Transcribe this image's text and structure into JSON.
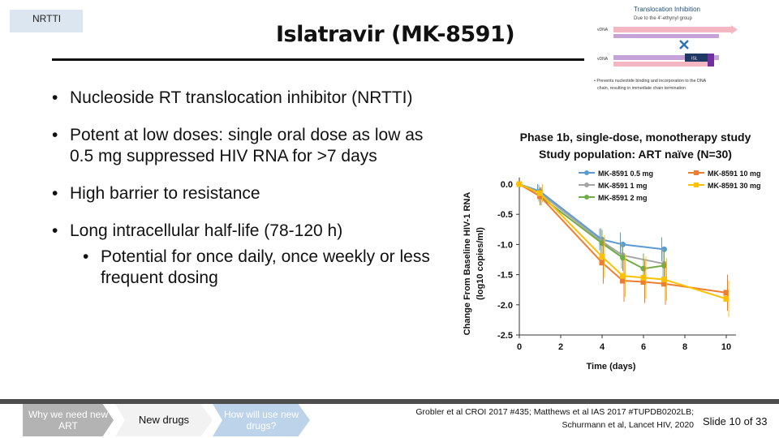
{
  "header": {
    "tag": "NRTTI",
    "title": "Islatravir (MK-8591)"
  },
  "bullets": [
    "Nucleoside RT translocation inhibitor (NRTTI)",
    "Potent at low doses: single oral dose as low as 0.5 mg suppressed HIV RNA for >7 days",
    "High barrier to resistance",
    "Long intracellular half-life (78-120 h)",
    "Potential for once daily, once weekly or less frequent dosing"
  ],
  "inset": {
    "title": "Translocation Inhibition",
    "subtitle": "Due to the 4'-ethynyl group",
    "label_top": "vDNA",
    "label_bottom": "vDNA",
    "badge": "ISL",
    "note_line1": "• Prevents nucleotide binding and incorporation to the DNA",
    "note_line2": "chain, resulting in immediate chain termination"
  },
  "chart_data": {
    "type": "line",
    "title": "Phase 1b, single-dose, monotherapy study",
    "subtitle": "Study population:  ART naïve (N=30)",
    "xlabel": "Time (days)",
    "ylabel": "Change From Baseline HIV-1 RNA",
    "ylabel2": "(log10 copies/ml)",
    "xlim": [
      0,
      10
    ],
    "ylim": [
      -2.5,
      0.0
    ],
    "xticks": [
      "0",
      "2",
      "4",
      "6",
      "8",
      "10"
    ],
    "yticks": [
      "0.0",
      "-0.5",
      "-1.0",
      "-1.5",
      "-2.0",
      "-2.5"
    ],
    "legend_position": "top",
    "series": [
      {
        "name": "MK-8591 0.5 mg",
        "color": "#5b9bd5",
        "x": [
          0,
          1,
          4,
          5,
          7
        ],
        "y": [
          0.0,
          -0.12,
          -0.92,
          -1.0,
          -1.08
        ],
        "err": [
          0.0,
          0.12,
          0.18,
          0.2,
          0.2
        ]
      },
      {
        "name": "MK-8591 1 mg",
        "color": "#a5a5a5",
        "x": [
          0,
          1,
          4,
          5,
          7
        ],
        "y": [
          0.0,
          -0.15,
          -0.95,
          -1.18,
          -1.32
        ],
        "err": [
          0.0,
          0.14,
          0.22,
          0.22,
          0.25
        ]
      },
      {
        "name": "MK-8591 2 mg",
        "color": "#70ad47",
        "x": [
          0,
          1,
          4,
          5,
          6,
          7
        ],
        "y": [
          0.0,
          -0.2,
          -0.98,
          -1.22,
          -1.4,
          -1.35
        ],
        "err": [
          0.0,
          0.15,
          0.22,
          0.22,
          0.25,
          0.25
        ]
      },
      {
        "name": "MK-8591 10 mg",
        "color": "#ed7d31",
        "x": [
          0,
          1,
          4,
          5,
          6,
          7,
          10
        ],
        "y": [
          0.0,
          -0.2,
          -1.3,
          -1.6,
          -1.62,
          -1.65,
          -1.8
        ],
        "err": [
          0.0,
          0.15,
          0.35,
          0.35,
          0.35,
          0.35,
          0.3
        ]
      },
      {
        "name": "MK-8591 30 mg",
        "color": "#ffc000",
        "x": [
          0,
          1,
          4,
          5,
          6,
          7,
          10
        ],
        "y": [
          0.0,
          -0.15,
          -1.2,
          -1.52,
          -1.55,
          -1.58,
          -1.9
        ],
        "err": [
          0.0,
          0.15,
          0.35,
          0.35,
          0.35,
          0.35,
          0.3
        ]
      }
    ]
  },
  "footer": {
    "nav": [
      "Why we need new ART",
      "New drugs",
      "How will use new drugs?"
    ],
    "refs_line1": "Grobler et al CROI 2017 #435; Matthews et al IAS 2017 #TUPDB0202LB;",
    "refs_line2": "Schurmann et al, Lancet HIV, 2020",
    "slide": "Slide 10 of 33"
  }
}
